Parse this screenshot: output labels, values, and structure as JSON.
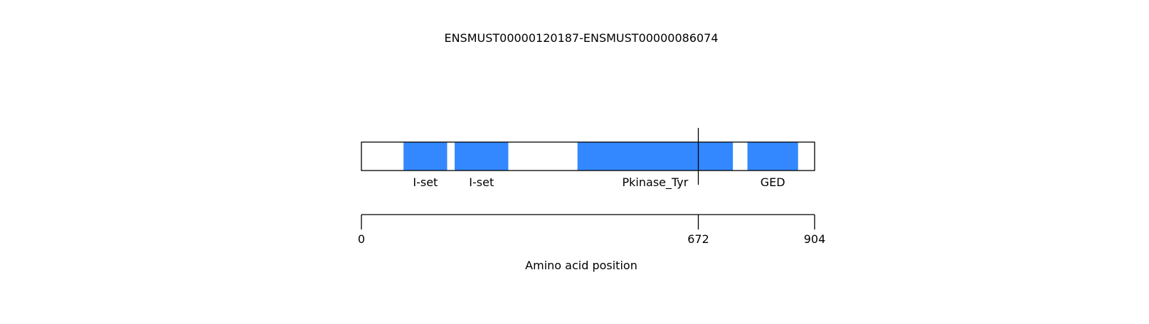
{
  "title": "ENSMUST00000120187-ENSMUST00000086074",
  "xlabel": "Amino acid position",
  "protein_length": 904,
  "breakpoint": 672,
  "colors": {
    "domain": "#3388ff",
    "line": "#000000",
    "background": "#ffffff"
  },
  "domains": [
    {
      "name": "I-set",
      "start": 84,
      "end": 171
    },
    {
      "name": "I-set",
      "start": 186,
      "end": 293
    },
    {
      "name": "Pkinase_Tyr",
      "start": 431,
      "end": 741
    },
    {
      "name": "GED",
      "start": 770,
      "end": 871
    }
  ],
  "axis_ticks": [
    {
      "label": "0",
      "value": 0
    },
    {
      "label": "672",
      "value": 672
    },
    {
      "label": "904",
      "value": 904
    }
  ]
}
